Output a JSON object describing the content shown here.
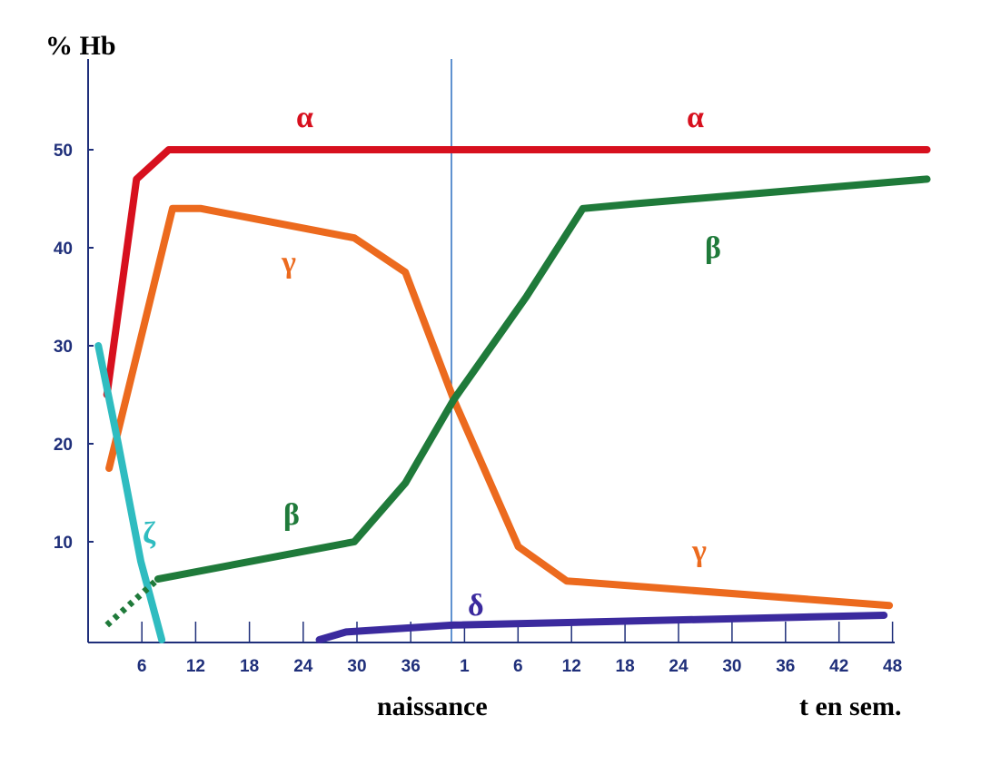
{
  "chart_data": {
    "type": "line",
    "title": "",
    "ylabel": "% Hb",
    "xlabel": "t en sem.",
    "birth_label": "naissance",
    "ylim": [
      0,
      55
    ],
    "yticks": [
      10,
      20,
      30,
      40,
      50
    ],
    "xtick_labels": [
      "6",
      "12",
      "18",
      "24",
      "30",
      "36",
      "1",
      "6",
      "12",
      "18",
      "24",
      "30",
      "36",
      "42",
      "48"
    ],
    "x_unit_note": "x values are tick-index positions (0 = axis origin, 1 = first tick '6', 7 = post-natal '1', 15 = '48')",
    "birth_x": 6.76,
    "grid": false,
    "series": [
      {
        "name": "α",
        "color": "#d7101e",
        "points": [
          [
            0.35,
            25
          ],
          [
            0.9,
            47
          ],
          [
            1.5,
            50
          ],
          [
            15.6,
            50
          ]
        ]
      },
      {
        "name": "γ",
        "color": "#ec6a1e",
        "points": [
          [
            0.39,
            17.5
          ],
          [
            1.57,
            44
          ],
          [
            2.1,
            44
          ],
          [
            4.95,
            41
          ],
          [
            5.9,
            37.5
          ],
          [
            6.8,
            24.5
          ],
          [
            8.0,
            9.5
          ],
          [
            8.9,
            6
          ],
          [
            14.9,
            3.5
          ]
        ]
      },
      {
        "name": "ζ",
        "color": "#2fbcc0",
        "points": [
          [
            0.19,
            30
          ],
          [
            0.56,
            20
          ],
          [
            0.98,
            8
          ],
          [
            1.37,
            0
          ]
        ]
      },
      {
        "name": "β",
        "color": "#1f7a3a",
        "points": [
          [
            1.3,
            6.2
          ],
          [
            4.95,
            10
          ],
          [
            5.9,
            16
          ],
          [
            6.8,
            24.5
          ],
          [
            8.15,
            35
          ],
          [
            9.2,
            44
          ],
          [
            10.2,
            44.5
          ],
          [
            15.6,
            47
          ]
        ],
        "dotted_start": [
          [
            0.35,
            1.5
          ],
          [
            1.3,
            6.2
          ]
        ]
      },
      {
        "name": "δ",
        "color": "#3b2a9e",
        "points": [
          [
            4.3,
            0
          ],
          [
            4.8,
            0.8
          ],
          [
            6.8,
            1.5
          ],
          [
            14.8,
            2.5
          ]
        ]
      }
    ],
    "annotations": [
      "α",
      "α",
      "γ",
      "γ",
      "β",
      "β",
      "ζ",
      "δ"
    ]
  }
}
